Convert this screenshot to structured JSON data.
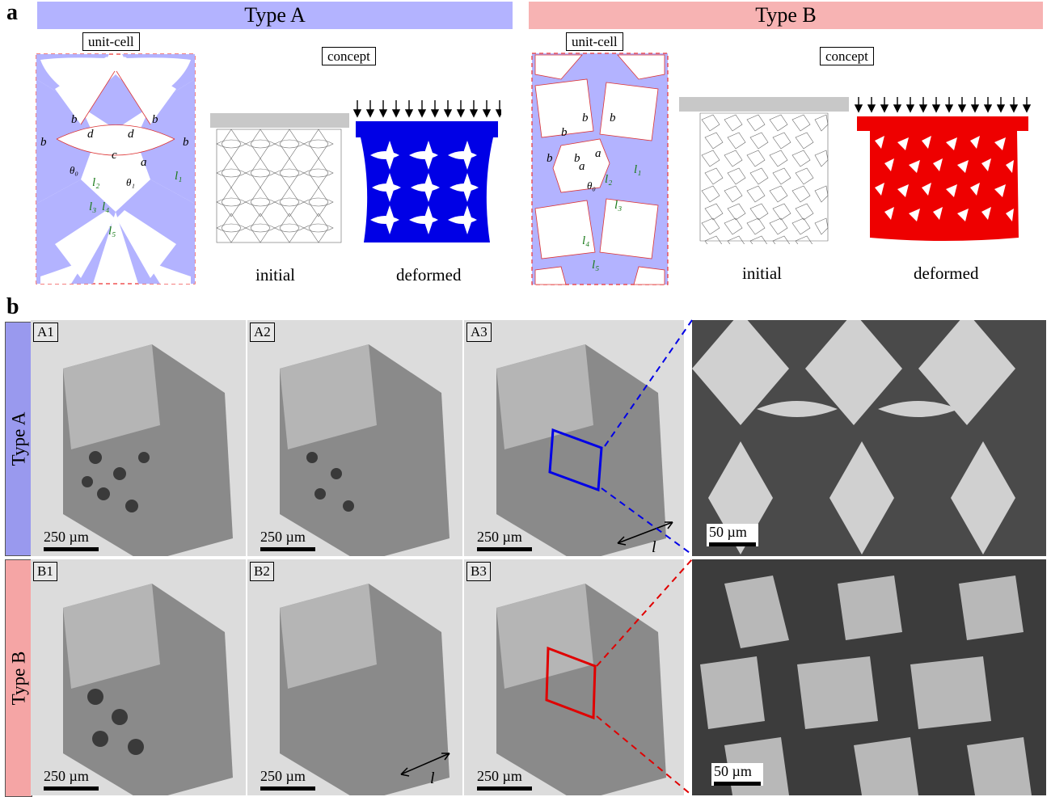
{
  "panel_a": {
    "letter": "a",
    "type_a": {
      "header": "Type A",
      "header_color": "#b3b3ff",
      "unit_cell_label": "unit-cell",
      "concept_label": "concept",
      "initial_caption": "initial",
      "deformed_caption": "deformed",
      "deformed_color": "#0000e6",
      "labels": [
        "b",
        "b",
        "d",
        "d",
        "b",
        "b",
        "c",
        "a",
        "θ0",
        "θ1",
        "l1",
        "l2",
        "l3",
        "l4",
        "l5"
      ]
    },
    "type_b": {
      "header": "Type B",
      "header_color": "#f7b3b3",
      "unit_cell_label": "unit-cell",
      "concept_label": "concept",
      "initial_caption": "initial",
      "deformed_caption": "deformed",
      "deformed_color": "#ee0000",
      "labels": [
        "b",
        "b",
        "b",
        "b",
        "b",
        "a",
        "a",
        "θ0",
        "l1",
        "l2",
        "l3",
        "l4",
        "l5"
      ]
    }
  },
  "panel_b": {
    "letter": "b",
    "row_a_label": "Type A",
    "row_b_label": "Type B",
    "row_a_color": "#9999ee",
    "row_b_color": "#f5a5a5",
    "tiles_a": [
      "A1",
      "A2",
      "A3"
    ],
    "tiles_b": [
      "B1",
      "B2",
      "B3"
    ],
    "scale_250": "250 µm",
    "scale_50": "50 µm",
    "axis_label": "l"
  }
}
